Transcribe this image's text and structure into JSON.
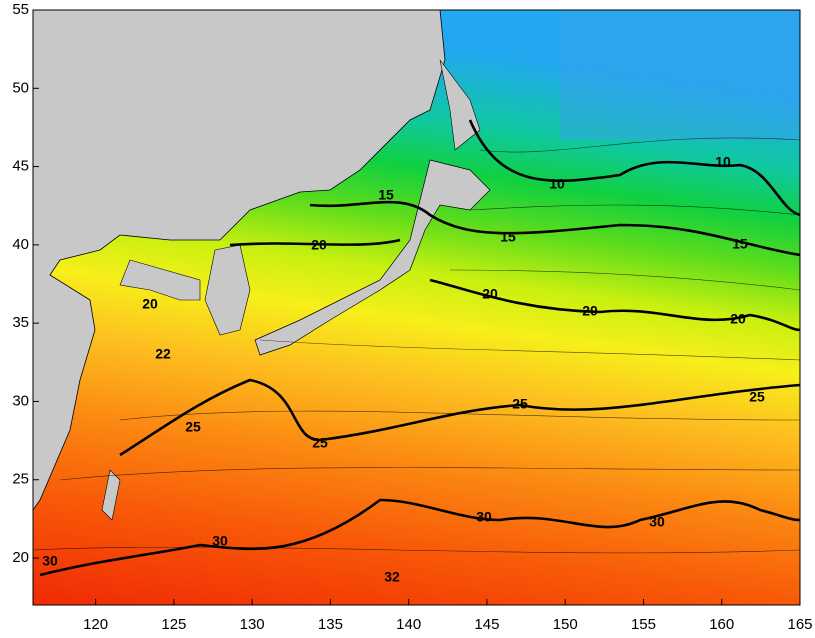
{
  "map": {
    "xlim": [
      116,
      165
    ],
    "ylim": [
      17,
      55
    ],
    "xticks": [
      120,
      125,
      130,
      135,
      140,
      145,
      150,
      155,
      160,
      165
    ],
    "yticks": [
      20,
      25,
      30,
      35,
      40,
      45,
      50,
      55
    ],
    "contour_labels": [
      10,
      10,
      15,
      15,
      15,
      20,
      20,
      20,
      20,
      20,
      22,
      25,
      25,
      25,
      25,
      30,
      30,
      30,
      30,
      32
    ]
  }
}
